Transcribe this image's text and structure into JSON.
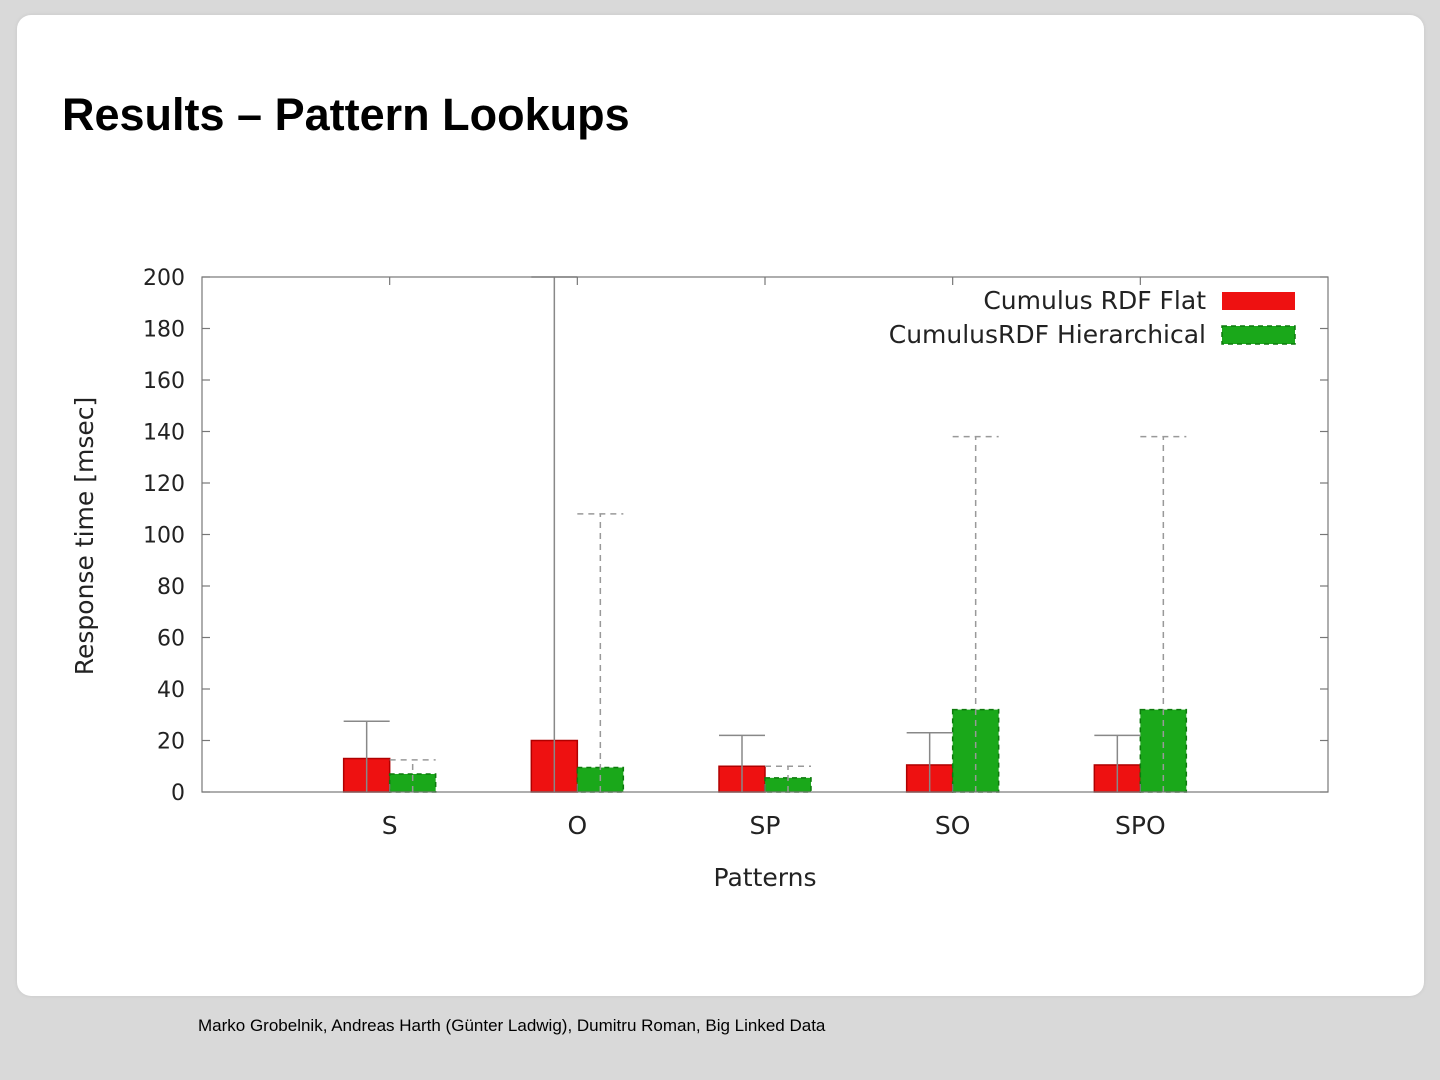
{
  "slide": {
    "title": "Results – Pattern Lookups",
    "footer": "Marko Grobelnik, Andreas Harth (Günter Ladwig), Dumitru Roman, Big Linked Data"
  },
  "chart_data": {
    "type": "bar",
    "categories": [
      "S",
      "O",
      "SP",
      "SO",
      "SPO"
    ],
    "xlabel": "Patterns",
    "ylabel": "Response time [msec]",
    "ylim": [
      0,
      200
    ],
    "yticks": [
      0,
      20,
      40,
      60,
      80,
      100,
      120,
      140,
      160,
      180,
      200
    ],
    "grid": false,
    "legend_position": "top-right",
    "error_bars": true,
    "series": [
      {
        "name": "Cumulus RDF Flat",
        "color": "#ee1111",
        "values": [
          13,
          20,
          10,
          10.5,
          10.5
        ],
        "error_upper": [
          27.5,
          200,
          22,
          23,
          22
        ],
        "error_style": "solid"
      },
      {
        "name": "CumulusRDF Hierarchical",
        "color": "#1aa81a",
        "values": [
          7,
          9.5,
          5.5,
          32,
          32
        ],
        "error_upper": [
          12.5,
          108,
          10,
          138,
          138
        ],
        "error_style": "dashed"
      }
    ]
  }
}
